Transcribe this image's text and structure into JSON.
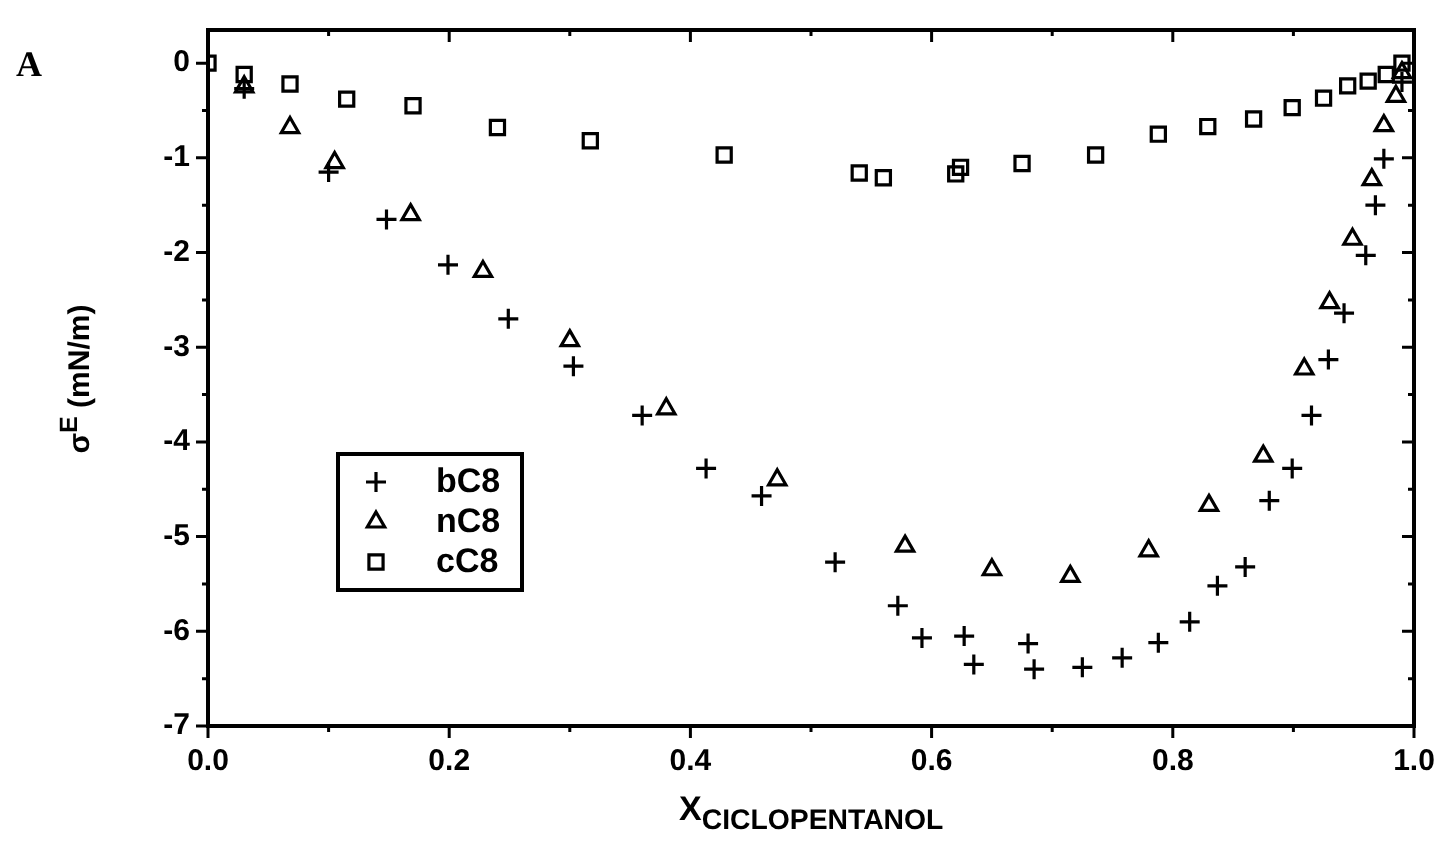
{
  "chart_data": {
    "type": "scatter",
    "xlabel": "X$_{CICLOPENTANOL}$",
    "ylabel": "σ$^{E}$ (mN/m)",
    "annotations": [
      "A"
    ],
    "xlim": [
      0,
      1
    ],
    "ylim": [
      -7,
      0.35
    ],
    "xticks": [
      {
        "value": 0,
        "label": "0.0"
      },
      {
        "value": 0.1,
        "label": null
      },
      {
        "value": 0.2,
        "label": "0.2"
      },
      {
        "value": 0.3,
        "label": null
      },
      {
        "value": 0.4,
        "label": "0.4"
      },
      {
        "value": 0.5,
        "label": null
      },
      {
        "value": 0.6,
        "label": "0.6"
      },
      {
        "value": 0.7,
        "label": null
      },
      {
        "value": 0.8,
        "label": "0.8"
      },
      {
        "value": 0.9,
        "label": null
      },
      {
        "value": 1,
        "label": "1.0"
      }
    ],
    "yticks": [
      -7,
      {
        "value": -6.5,
        "label": null
      },
      -6,
      {
        "value": -5.5,
        "label": null
      },
      -5,
      {
        "value": -4.5,
        "label": null
      },
      -4,
      {
        "value": -3.5,
        "label": null
      },
      -3,
      {
        "value": -2.5,
        "label": null
      },
      -2,
      {
        "value": -1.5,
        "label": null
      },
      -1,
      {
        "value": -0.5,
        "label": null
      },
      0
    ],
    "grid": false,
    "legend": "bottom left",
    "series": [
      {
        "name": "bC8",
        "color": "#000000",
        "marker": "cross",
        "x": [
          0.03,
          0.1,
          0.148,
          0.199,
          0.249,
          0.303,
          0.36,
          0.413,
          0.459,
          0.52,
          0.572,
          0.592,
          0.627,
          0.635,
          0.68,
          0.685,
          0.725,
          0.758,
          0.788,
          0.814,
          0.837,
          0.86,
          0.88,
          0.899,
          0.915,
          0.929,
          0.942,
          0.96,
          0.968,
          0.975,
          0.99
        ],
        "values": [
          -0.27,
          -1.15,
          -1.65,
          -2.13,
          -2.7,
          -3.2,
          -3.72,
          -4.28,
          -4.57,
          -5.27,
          -5.73,
          -6.07,
          -6.05,
          -6.35,
          -6.13,
          -6.4,
          -6.38,
          -6.28,
          -6.12,
          -5.9,
          -5.52,
          -5.32,
          -4.62,
          -4.28,
          -3.72,
          -3.13,
          -2.64,
          -2.03,
          -1.5,
          -1.01,
          -0.2
        ]
      },
      {
        "name": "nC8",
        "color": "#000000",
        "marker": "triangle",
        "x": [
          0.03,
          0.068,
          0.105,
          0.168,
          0.228,
          0.3,
          0.38,
          0.472,
          0.578,
          0.65,
          0.715,
          0.78,
          0.83,
          0.875,
          0.909,
          0.93,
          0.949,
          0.965,
          0.975,
          0.985,
          0.99
        ],
        "values": [
          -0.25,
          -0.68,
          -1.05,
          -1.6,
          -2.2,
          -2.93,
          -3.65,
          -4.4,
          -5.1,
          -5.35,
          -5.42,
          -5.15,
          -4.67,
          -4.15,
          -3.23,
          -2.53,
          -1.86,
          -1.23,
          -0.66,
          -0.35,
          -0.1
        ]
      },
      {
        "name": "cC8",
        "color": "#000000",
        "marker": "square",
        "x": [
          0,
          0.03,
          0.068,
          0.115,
          0.17,
          0.24,
          0.317,
          0.428,
          0.54,
          0.56,
          0.62,
          0.624,
          0.675,
          0.736,
          0.788,
          0.829,
          0.867,
          0.899,
          0.925,
          0.945,
          0.962,
          0.977,
          0.99
        ],
        "values": [
          0,
          -0.12,
          -0.22,
          -0.38,
          -0.45,
          -0.68,
          -0.82,
          -0.97,
          -1.16,
          -1.21,
          -1.17,
          -1.1,
          -1.06,
          -0.97,
          -0.75,
          -0.67,
          -0.59,
          -0.47,
          -0.37,
          -0.24,
          -0.19,
          -0.12,
          0
        ]
      }
    ]
  }
}
